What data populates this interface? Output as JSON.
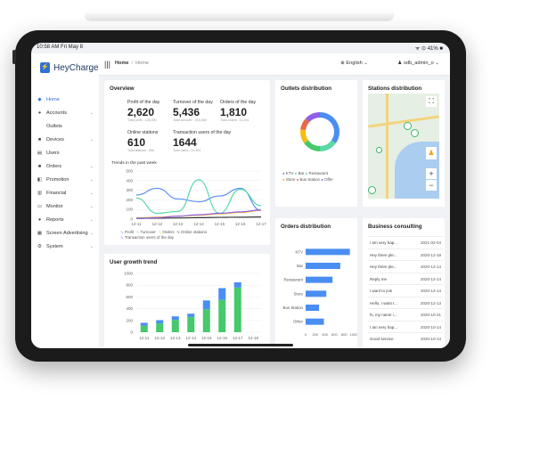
{
  "status": {
    "time": "10:58 AM  Fri May 8",
    "right": "ᯤ ⊙ 41% ■"
  },
  "app": {
    "name": "HeyCharge"
  },
  "sidebar": {
    "items": [
      {
        "label": "Home",
        "icon": "◆"
      },
      {
        "label": "Accounts",
        "icon": "●"
      },
      {
        "label": "Outlets",
        "icon": ""
      },
      {
        "label": "Devices",
        "icon": "■"
      },
      {
        "label": "Users",
        "icon": "▤"
      },
      {
        "label": "Orders",
        "icon": "■"
      },
      {
        "label": "Promotion",
        "icon": "◧"
      },
      {
        "label": "Financial",
        "icon": "▥"
      },
      {
        "label": "Monitor",
        "icon": "▭"
      },
      {
        "label": "Reports",
        "icon": "●"
      },
      {
        "label": "Screen Advertising",
        "icon": "▦"
      },
      {
        "label": "System",
        "icon": "⚙"
      }
    ]
  },
  "topbar": {
    "breadcrumb_root": "Home",
    "breadcrumb_current": "Home",
    "language": "English",
    "user": "odb_admin_o"
  },
  "overview": {
    "title": "Overview",
    "stats": [
      {
        "label": "Profit of the day",
        "value": "2,620",
        "sub": "Total profit : 108,000"
      },
      {
        "label": "Turnover of the day",
        "value": "5,436",
        "sub": "Total turnover : 215,000"
      },
      {
        "label": "Orders of the day",
        "value": "1,810",
        "sub": "Total orders : 11,201"
      },
      {
        "label": "Online stations",
        "value": "610",
        "sub": "Total stations : 800"
      },
      {
        "label": "Transaction users of the day",
        "value": "1644",
        "sub": "Total users : 31,161"
      }
    ],
    "trend_title": "Trends in the past week",
    "trend_legend": [
      "Profit",
      "Turnover",
      "Orders",
      "Online stations",
      "Transaction users of the day"
    ]
  },
  "colors": {
    "profit": "#5b8ff9",
    "turnover": "#5ad8a6",
    "orders": "#f6bd16",
    "online": "#333333",
    "users": "#8f5fe8",
    "blue": "#4a8ef2",
    "green": "#45c96a"
  },
  "outlets": {
    "title": "Outlets distribution",
    "legend": [
      "KTV",
      "Bar",
      "Restaurant",
      "Store",
      "Bus Station",
      "Offer"
    ]
  },
  "stations": {
    "title": "Stations distribution"
  },
  "user_growth": {
    "title": "User growth trend"
  },
  "orders_dist": {
    "title": "Orders distribution"
  },
  "consulting": {
    "title": "Business consulting",
    "rows": [
      {
        "text": "I am very hap...",
        "date": "2021-02-04"
      },
      {
        "text": "Hey there ple...",
        "date": "2020-12-18"
      },
      {
        "text": "Hey there ple...",
        "date": "2020-12-14"
      },
      {
        "text": "Reply me",
        "date": "2020-12-14"
      },
      {
        "text": "I want to join",
        "date": "2020-12-14"
      },
      {
        "text": "Hello, I want t...",
        "date": "2020-12-13"
      },
      {
        "text": "hi, my name i...",
        "date": "2020-10-21"
      },
      {
        "text": "I am very hap...",
        "date": "2020-10-14"
      },
      {
        "text": "Good service",
        "date": "2020-10-13"
      }
    ]
  },
  "chart_data": [
    {
      "type": "line",
      "title": "Trends in the past week",
      "categories": [
        "12-11",
        "12-12",
        "12-13",
        "12-14",
        "12-15",
        "12-16",
        "12-17"
      ],
      "ylim": [
        0,
        500
      ],
      "yticks": [
        0,
        100,
        200,
        300,
        400,
        500
      ],
      "series": [
        {
          "name": "Profit",
          "values": [
            250,
            320,
            210,
            180,
            240,
            320,
            90
          ]
        },
        {
          "name": "Turnover",
          "values": [
            220,
            60,
            80,
            410,
            60,
            310,
            140
          ]
        },
        {
          "name": "Orders",
          "values": [
            10,
            20,
            30,
            40,
            55,
            70,
            90
          ]
        },
        {
          "name": "Online stations",
          "values": [
            8,
            10,
            12,
            15,
            18,
            20,
            22
          ]
        },
        {
          "name": "Transaction users of the day",
          "values": [
            5,
            15,
            30,
            45,
            60,
            75,
            95
          ]
        }
      ]
    },
    {
      "type": "pie",
      "title": "Outlets distribution",
      "categories": [
        "KTV",
        "Bar",
        "Restaurant",
        "Store",
        "Bus Station",
        "Offer"
      ],
      "values": [
        35,
        15,
        15,
        12,
        10,
        13
      ]
    },
    {
      "type": "bar",
      "title": "User growth trend",
      "categories": [
        "12-11",
        "12-12",
        "12-13",
        "12-14",
        "12-15",
        "12-16",
        "12-17",
        "12-18"
      ],
      "ylim": [
        0,
        1000
      ],
      "yticks": [
        0,
        200,
        400,
        600,
        800,
        1000
      ],
      "series": [
        {
          "values": [
            110,
            150,
            210,
            260,
            390,
            550,
            760,
            0
          ]
        },
        {
          "values": [
            50,
            55,
            60,
            55,
            150,
            200,
            90,
            0
          ]
        }
      ]
    },
    {
      "type": "bar",
      "title": "Orders distribution",
      "categories": [
        "KTV",
        "Bar",
        "Restaurant",
        "Store",
        "Bus Station",
        "Other"
      ],
      "values": [
        920,
        720,
        560,
        430,
        280,
        380
      ],
      "xlim": [
        0,
        1000
      ],
      "xticks": [
        0,
        200,
        400,
        600,
        800,
        1000
      ]
    }
  ]
}
